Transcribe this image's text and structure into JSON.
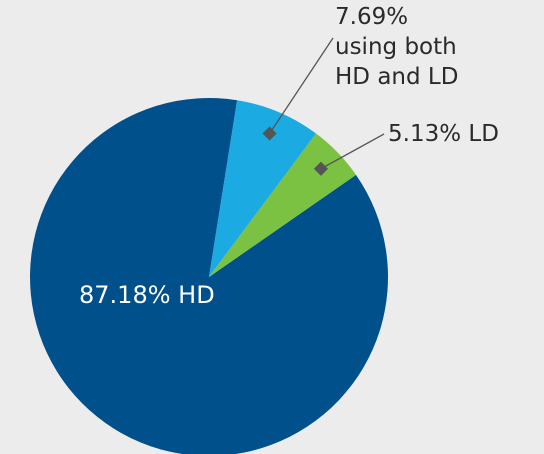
{
  "chart_data": {
    "type": "pie",
    "values": [
      87.18,
      7.69,
      5.13
    ],
    "value_labels": [
      "87.18% HD",
      "7.69%\nusing both\nHD and LD",
      "5.13% LD"
    ],
    "colors": [
      "#00508c",
      "#1caae3",
      "#7cc242"
    ]
  }
}
